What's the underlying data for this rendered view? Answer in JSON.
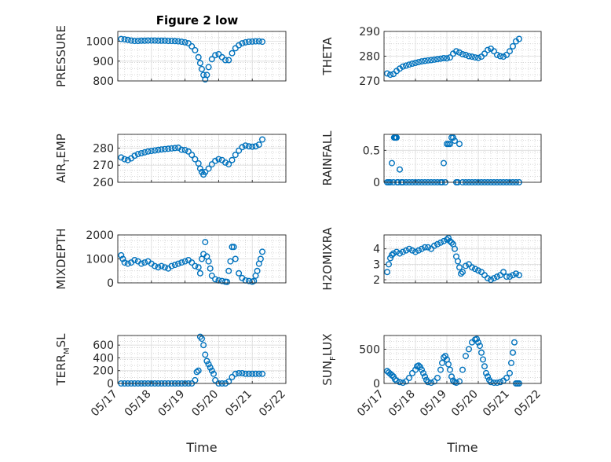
{
  "figure": {
    "title": "Figure 2 low",
    "marker_color": "#0072BD",
    "grid_color": "#c8c8c8"
  },
  "chart_data": [
    {
      "id": "pressure",
      "type": "scatter",
      "ylabel": {
        "main": "PRESSURE",
        "sub": ""
      },
      "xlim": [
        0,
        5
      ],
      "ylim": [
        800,
        1050
      ],
      "yticks": [
        {
          "v": 800,
          "label": "800"
        },
        {
          "v": 900,
          "label": "900"
        },
        {
          "v": 1000,
          "label": "1000"
        }
      ],
      "xticks": [],
      "grid": true,
      "x": [
        0.1,
        0.2,
        0.3,
        0.4,
        0.5,
        0.6,
        0.7,
        0.8,
        0.9,
        1.0,
        1.1,
        1.2,
        1.3,
        1.4,
        1.5,
        1.6,
        1.7,
        1.8,
        1.9,
        2.0,
        2.1,
        2.2,
        2.3,
        2.4,
        2.45,
        2.5,
        2.55,
        2.6,
        2.65,
        2.7,
        2.8,
        2.9,
        3.0,
        3.1,
        3.2,
        3.3,
        3.4,
        3.5,
        3.6,
        3.7,
        3.8,
        3.9,
        4.0,
        4.1,
        4.2,
        4.3
      ],
      "y": [
        1012,
        1010,
        1007,
        1004,
        1002,
        1002,
        1003,
        1003,
        1004,
        1004,
        1004,
        1003,
        1003,
        1003,
        1002,
        1002,
        1001,
        1000,
        998,
        995,
        990,
        975,
        955,
        920,
        890,
        860,
        830,
        808,
        830,
        870,
        910,
        930,
        935,
        920,
        905,
        905,
        940,
        965,
        980,
        990,
        995,
        998,
        999,
        1000,
        1000,
        998
      ]
    },
    {
      "id": "theta",
      "type": "scatter",
      "ylabel": {
        "main": "THETA",
        "sub": ""
      },
      "xlim": [
        0,
        5
      ],
      "ylim": [
        270,
        290
      ],
      "yticks": [
        {
          "v": 270,
          "label": "270"
        },
        {
          "v": 280,
          "label": "280"
        },
        {
          "v": 290,
          "label": "290"
        }
      ],
      "xticks": [],
      "grid": true,
      "x": [
        0.1,
        0.2,
        0.3,
        0.4,
        0.5,
        0.6,
        0.7,
        0.8,
        0.9,
        1.0,
        1.1,
        1.2,
        1.3,
        1.4,
        1.5,
        1.6,
        1.7,
        1.8,
        1.9,
        2.0,
        2.1,
        2.2,
        2.3,
        2.4,
        2.5,
        2.6,
        2.7,
        2.8,
        2.9,
        3.0,
        3.1,
        3.2,
        3.3,
        3.4,
        3.5,
        3.6,
        3.7,
        3.8,
        3.9,
        4.0,
        4.1,
        4.2,
        4.3
      ],
      "y": [
        273,
        272.5,
        272.8,
        274,
        275,
        275.8,
        276.2,
        276.6,
        277,
        277.3,
        277.6,
        277.9,
        278.1,
        278.3,
        278.4,
        278.6,
        278.8,
        279,
        279.2,
        279.1,
        279.5,
        281,
        282,
        281.5,
        280.8,
        280.5,
        280,
        279.8,
        279.5,
        279.3,
        279.8,
        281,
        282.5,
        283,
        282,
        280.5,
        280,
        279.8,
        280.5,
        282,
        284,
        286,
        287
      ]
    },
    {
      "id": "air_temp",
      "type": "scatter",
      "ylabel": {
        "main": "AIR",
        "sub": "T",
        "rest": "EMP"
      },
      "xlim": [
        0,
        5
      ],
      "ylim": [
        260,
        288
      ],
      "yticks": [
        {
          "v": 260,
          "label": "260"
        },
        {
          "v": 270,
          "label": "270"
        },
        {
          "v": 280,
          "label": "280"
        }
      ],
      "xticks": [],
      "grid": true,
      "x": [
        0.1,
        0.2,
        0.3,
        0.4,
        0.5,
        0.6,
        0.7,
        0.8,
        0.9,
        1.0,
        1.1,
        1.2,
        1.3,
        1.4,
        1.5,
        1.6,
        1.7,
        1.8,
        1.9,
        2.0,
        2.1,
        2.2,
        2.3,
        2.4,
        2.45,
        2.5,
        2.55,
        2.6,
        2.7,
        2.8,
        2.9,
        3.0,
        3.1,
        3.2,
        3.3,
        3.4,
        3.5,
        3.6,
        3.7,
        3.8,
        3.9,
        4.0,
        4.1,
        4.2,
        4.3
      ],
      "y": [
        274.5,
        273.5,
        273,
        274,
        275.5,
        276.5,
        277,
        277.5,
        278,
        278.3,
        278.6,
        278.9,
        279.2,
        279.4,
        279.6,
        279.8,
        280,
        280.2,
        279,
        278.8,
        278,
        276,
        273.5,
        271,
        268,
        266,
        264.5,
        266,
        268,
        270.5,
        272.5,
        273.5,
        273,
        271.5,
        270.5,
        273,
        276,
        278.5,
        280.5,
        281.5,
        281,
        280.8,
        281,
        282,
        285
      ]
    },
    {
      "id": "rainfall",
      "type": "scatter",
      "ylabel": {
        "main": "RAINFALL",
        "sub": ""
      },
      "xlim": [
        0,
        5
      ],
      "ylim": [
        0,
        0.75
      ],
      "yticks": [
        {
          "v": 0,
          "label": "0"
        },
        {
          "v": 0.5,
          "label": "0.5"
        }
      ],
      "xticks": [],
      "grid": true,
      "x": [
        0.1,
        0.15,
        0.2,
        0.25,
        0.3,
        0.32,
        0.34,
        0.36,
        0.38,
        0.4,
        0.42,
        0.45,
        0.5,
        0.55,
        0.6,
        0.7,
        0.8,
        0.9,
        1.0,
        1.1,
        1.2,
        1.3,
        1.4,
        1.5,
        1.6,
        1.7,
        1.8,
        1.85,
        1.9,
        1.95,
        2.0,
        2.05,
        2.1,
        2.15,
        2.2,
        2.25,
        2.3,
        2.35,
        2.4,
        2.5,
        2.6,
        2.7,
        2.8,
        2.9,
        3.0,
        3.1,
        3.2,
        3.3,
        3.4,
        3.5,
        3.6,
        3.7,
        3.8,
        3.9,
        4.0,
        4.1,
        4.2,
        4.3
      ],
      "y": [
        0,
        0,
        0,
        0.3,
        0,
        0.7,
        0.7,
        0.7,
        0.7,
        0.7,
        0,
        0,
        0.2,
        0,
        0,
        0,
        0,
        0,
        0,
        0,
        0,
        0,
        0,
        0,
        0,
        0,
        0,
        0,
        0.3,
        0,
        0.6,
        0.6,
        0.6,
        0.7,
        0.7,
        0.65,
        0,
        0,
        0.6,
        0,
        0,
        0,
        0,
        0,
        0,
        0,
        0,
        0,
        0,
        0,
        0,
        0,
        0,
        0,
        0,
        0,
        0,
        0
      ]
    },
    {
      "id": "mixdepth",
      "type": "scatter",
      "ylabel": {
        "main": "MIXDEPTH",
        "sub": ""
      },
      "xlim": [
        0,
        5
      ],
      "ylim": [
        0,
        2000
      ],
      "yticks": [
        {
          "v": 0,
          "label": "0"
        },
        {
          "v": 1000,
          "label": "1000"
        },
        {
          "v": 2000,
          "label": "2000"
        }
      ],
      "xticks": [],
      "grid": true,
      "x": [
        0.1,
        0.15,
        0.2,
        0.3,
        0.4,
        0.5,
        0.6,
        0.7,
        0.8,
        0.9,
        1.0,
        1.1,
        1.2,
        1.3,
        1.4,
        1.5,
        1.6,
        1.7,
        1.8,
        1.9,
        2.0,
        2.1,
        2.2,
        2.3,
        2.4,
        2.45,
        2.5,
        2.55,
        2.6,
        2.65,
        2.7,
        2.75,
        2.8,
        2.9,
        3.0,
        3.1,
        3.2,
        3.25,
        3.3,
        3.35,
        3.4,
        3.45,
        3.5,
        3.6,
        3.7,
        3.8,
        3.9,
        4.0,
        4.05,
        4.1,
        4.15,
        4.2,
        4.25,
        4.3
      ],
      "y": [
        1150,
        1000,
        850,
        800,
        850,
        950,
        900,
        800,
        850,
        900,
        800,
        700,
        650,
        700,
        650,
        600,
        700,
        750,
        800,
        850,
        900,
        950,
        850,
        700,
        650,
        400,
        1000,
        1200,
        1700,
        1100,
        900,
        600,
        300,
        150,
        100,
        80,
        50,
        40,
        500,
        900,
        1500,
        1500,
        1000,
        400,
        200,
        100,
        80,
        50,
        80,
        300,
        500,
        800,
        1000,
        1300
      ]
    },
    {
      "id": "h2omixra",
      "type": "scatter",
      "ylabel": {
        "main": "H2OMIXRA",
        "sub": ""
      },
      "xlim": [
        0,
        5
      ],
      "ylim": [
        1.8,
        4.9
      ],
      "yticks": [
        {
          "v": 2,
          "label": "2"
        },
        {
          "v": 3,
          "label": "3"
        },
        {
          "v": 4,
          "label": "4"
        }
      ],
      "xticks": [],
      "grid": true,
      "x": [
        0.1,
        0.15,
        0.2,
        0.25,
        0.3,
        0.4,
        0.5,
        0.6,
        0.7,
        0.8,
        0.9,
        1.0,
        1.1,
        1.2,
        1.3,
        1.4,
        1.5,
        1.6,
        1.7,
        1.8,
        1.9,
        2.0,
        2.05,
        2.1,
        2.15,
        2.2,
        2.25,
        2.3,
        2.35,
        2.4,
        2.45,
        2.5,
        2.6,
        2.7,
        2.8,
        2.9,
        3.0,
        3.1,
        3.2,
        3.3,
        3.4,
        3.5,
        3.6,
        3.7,
        3.8,
        3.9,
        4.0,
        4.1,
        4.2,
        4.3
      ],
      "y": [
        2.5,
        3.0,
        3.4,
        3.6,
        3.7,
        3.8,
        3.7,
        3.8,
        3.9,
        4.0,
        3.9,
        3.8,
        3.9,
        4.0,
        4.1,
        4.1,
        4.0,
        4.2,
        4.3,
        4.4,
        4.5,
        4.6,
        4.7,
        4.5,
        4.4,
        4.3,
        4.0,
        3.5,
        3.2,
        2.8,
        2.4,
        2.5,
        2.9,
        3.0,
        2.8,
        2.7,
        2.6,
        2.5,
        2.3,
        2.1,
        2.0,
        2.1,
        2.2,
        2.3,
        2.5,
        2.2,
        2.2,
        2.3,
        2.4,
        2.3
      ]
    },
    {
      "id": "terr_msl",
      "type": "scatter",
      "ylabel": {
        "main": "TERR",
        "sub": "M",
        "rest": "SL"
      },
      "xlim": [
        0,
        5
      ],
      "ylim": [
        0,
        750
      ],
      "yticks": [
        {
          "v": 0,
          "label": "0"
        },
        {
          "v": 200,
          "label": "200"
        },
        {
          "v": 400,
          "label": "400"
        },
        {
          "v": 600,
          "label": "600"
        }
      ],
      "xticks": [
        {
          "v": 0,
          "label": "05/17"
        },
        {
          "v": 1,
          "label": "05/18"
        },
        {
          "v": 2,
          "label": "05/19"
        },
        {
          "v": 3,
          "label": "05/20"
        },
        {
          "v": 4,
          "label": "05/21"
        },
        {
          "v": 5,
          "label": "05/22"
        }
      ],
      "xlabel": "Time",
      "grid": true,
      "x": [
        0.1,
        0.2,
        0.3,
        0.4,
        0.5,
        0.6,
        0.7,
        0.8,
        0.9,
        1.0,
        1.1,
        1.2,
        1.3,
        1.4,
        1.5,
        1.6,
        1.7,
        1.8,
        1.9,
        2.0,
        2.1,
        2.2,
        2.3,
        2.35,
        2.4,
        2.45,
        2.5,
        2.55,
        2.6,
        2.65,
        2.7,
        2.75,
        2.8,
        2.85,
        2.9,
        3.0,
        3.1,
        3.2,
        3.3,
        3.4,
        3.5,
        3.6,
        3.7,
        3.8,
        3.9,
        4.0,
        4.1,
        4.2,
        4.3
      ],
      "y": [
        0,
        0,
        0,
        0,
        0,
        0,
        0,
        0,
        0,
        0,
        0,
        0,
        0,
        0,
        0,
        0,
        0,
        0,
        0,
        0,
        0,
        0,
        50,
        180,
        200,
        730,
        700,
        600,
        450,
        350,
        300,
        250,
        200,
        150,
        50,
        0,
        0,
        0,
        30,
        100,
        150,
        160,
        160,
        150,
        150,
        150,
        150,
        150,
        150
      ]
    },
    {
      "id": "sun_flux",
      "type": "scatter",
      "ylabel": {
        "main": "SUN",
        "sub": "F",
        "rest": "LUX"
      },
      "xlim": [
        0,
        5
      ],
      "ylim": [
        0,
        700
      ],
      "yticks": [
        {
          "v": 0,
          "label": "0"
        },
        {
          "v": 500,
          "label": "500"
        }
      ],
      "xticks": [
        {
          "v": 0,
          "label": "05/17"
        },
        {
          "v": 1,
          "label": "05/18"
        },
        {
          "v": 2,
          "label": "05/19"
        },
        {
          "v": 3,
          "label": "05/20"
        },
        {
          "v": 4,
          "label": "05/21"
        },
        {
          "v": 5,
          "label": "05/22"
        }
      ],
      "xlabel": "Time",
      "grid": true,
      "x": [
        0.1,
        0.15,
        0.2,
        0.25,
        0.3,
        0.35,
        0.4,
        0.5,
        0.6,
        0.7,
        0.8,
        0.9,
        1.0,
        1.05,
        1.1,
        1.15,
        1.2,
        1.25,
        1.3,
        1.35,
        1.4,
        1.5,
        1.6,
        1.7,
        1.8,
        1.85,
        1.9,
        1.95,
        2.0,
        2.05,
        2.1,
        2.15,
        2.2,
        2.25,
        2.3,
        2.4,
        2.5,
        2.6,
        2.7,
        2.8,
        2.9,
        2.95,
        3.0,
        3.05,
        3.1,
        3.15,
        3.2,
        3.25,
        3.3,
        3.35,
        3.4,
        3.5,
        3.6,
        3.7,
        3.8,
        3.9,
        4.0,
        4.05,
        4.1,
        4.15,
        4.2,
        4.25,
        4.3
      ],
      "y": [
        180,
        160,
        140,
        120,
        100,
        60,
        40,
        20,
        10,
        30,
        80,
        150,
        200,
        250,
        260,
        240,
        200,
        150,
        100,
        50,
        20,
        10,
        30,
        80,
        200,
        300,
        380,
        400,
        350,
        280,
        200,
        100,
        40,
        20,
        10,
        30,
        200,
        400,
        500,
        600,
        640,
        650,
        600,
        550,
        450,
        350,
        250,
        150,
        100,
        50,
        20,
        10,
        10,
        20,
        40,
        80,
        150,
        300,
        450,
        600,
        0,
        0,
        0
      ]
    }
  ]
}
